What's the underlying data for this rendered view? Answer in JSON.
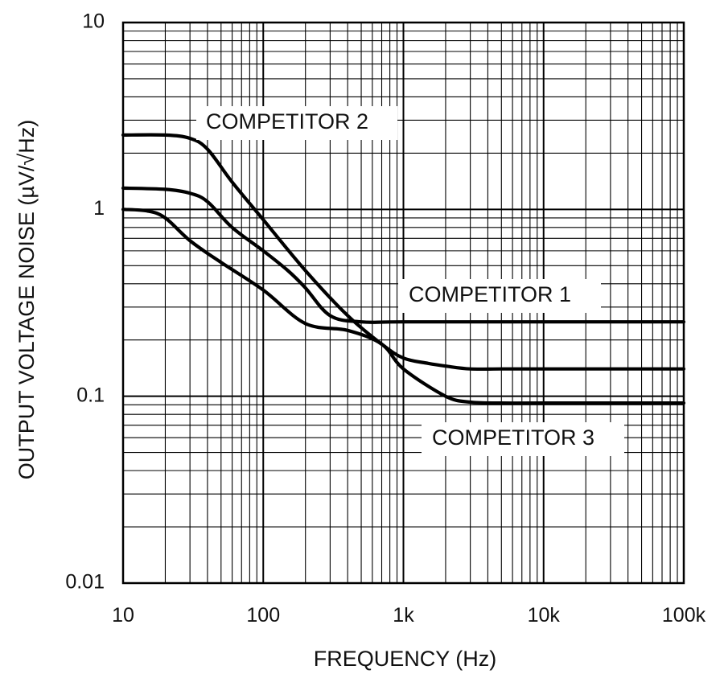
{
  "chart_data": {
    "type": "line",
    "xlabel": "FREQUENCY (Hz)",
    "ylabel": "OUTPUT VOLTAGE NOISE (µV/√Hz)",
    "x_scale": "log",
    "y_scale": "log",
    "xlim": [
      10,
      100000
    ],
    "ylim": [
      0.01,
      10
    ],
    "grid": true,
    "x_ticks": [
      {
        "value": 10,
        "label": "10"
      },
      {
        "value": 100,
        "label": "100"
      },
      {
        "value": 1000,
        "label": "1k"
      },
      {
        "value": 10000,
        "label": "10k"
      },
      {
        "value": 100000,
        "label": "100k"
      }
    ],
    "y_ticks": [
      {
        "value": 10,
        "label": "10"
      },
      {
        "value": 1,
        "label": "1"
      },
      {
        "value": 0.1,
        "label": "0.1"
      },
      {
        "value": 0.01,
        "label": "0.01"
      }
    ],
    "series": [
      {
        "name": "COMPETITOR 2",
        "x": [
          10,
          20,
          30,
          40,
          60,
          100,
          200,
          400,
          700,
          1000,
          1500,
          2000,
          3000,
          5000,
          10000,
          100000
        ],
        "y": [
          2.5,
          2.5,
          2.4,
          2.1,
          1.4,
          0.88,
          0.47,
          0.27,
          0.19,
          0.16,
          0.15,
          0.145,
          0.14,
          0.14,
          0.14,
          0.14
        ]
      },
      {
        "name": "COMPETITOR 1",
        "x": [
          10,
          20,
          30,
          40,
          60,
          100,
          150,
          200,
          300,
          500,
          1000,
          10000,
          100000
        ],
        "y": [
          1.3,
          1.28,
          1.22,
          1.1,
          0.8,
          0.6,
          0.47,
          0.38,
          0.27,
          0.25,
          0.25,
          0.25,
          0.25
        ]
      },
      {
        "name": "COMPETITOR 3",
        "x": [
          10,
          15,
          20,
          30,
          50,
          100,
          200,
          400,
          700,
          1000,
          2000,
          3000,
          5000,
          10000,
          100000
        ],
        "y": [
          1.0,
          0.98,
          0.9,
          0.68,
          0.52,
          0.37,
          0.245,
          0.225,
          0.19,
          0.14,
          0.1,
          0.093,
          0.092,
          0.092,
          0.092
        ]
      }
    ]
  }
}
